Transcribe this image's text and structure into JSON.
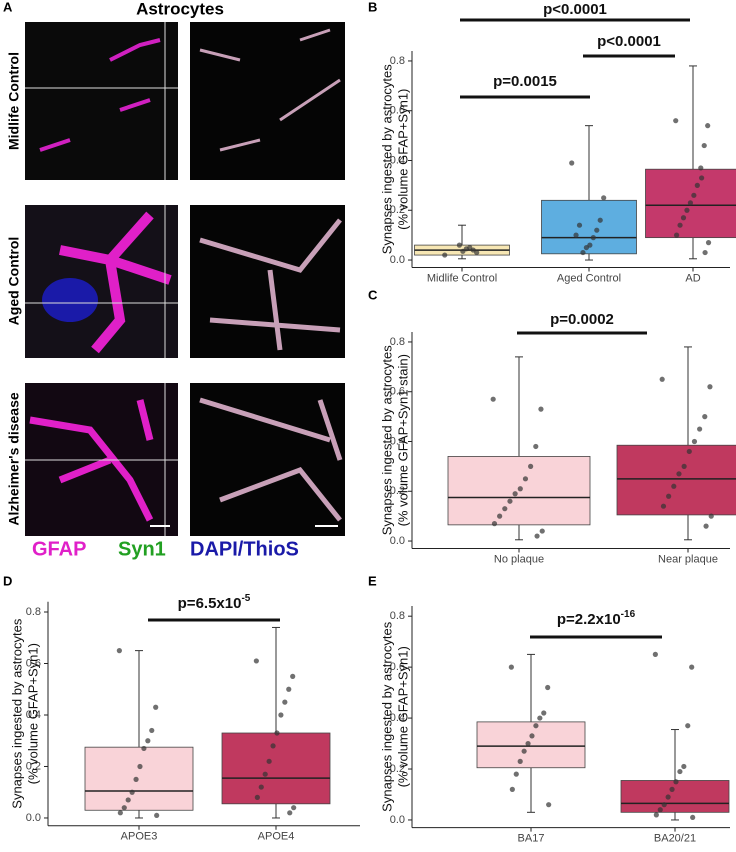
{
  "figure": {
    "panel_labels": [
      "A",
      "B",
      "C",
      "D",
      "E"
    ],
    "title": "Astrocytes",
    "rows": [
      "Midlife Control",
      "Aged Control",
      "Alzheimer's disease"
    ],
    "legend": [
      {
        "name": "GFAP",
        "color": "#e020c8"
      },
      {
        "name": "Syn1",
        "color": "#22a022"
      },
      {
        "name": "DAPI/ThioS",
        "color": "#1a1aa8"
      }
    ]
  },
  "chart_data": [
    {
      "type": "box",
      "ylabel": [
        "Synapses ingested by astrocytes",
        "(% volume GFAP+Syn1)"
      ],
      "categories": [
        "Midlife Control",
        "Aged Control",
        "AD"
      ],
      "colors": [
        "#f7e7b4",
        "#5eaee0",
        "#c4396b"
      ],
      "boxes": [
        {
          "min": 0.005,
          "q1": 0.02,
          "median": 0.04,
          "q3": 0.06,
          "max": 0.14
        },
        {
          "min": 0.0,
          "q1": 0.025,
          "median": 0.09,
          "q3": 0.24,
          "max": 0.54
        },
        {
          "min": 0.005,
          "q1": 0.09,
          "median": 0.22,
          "q3": 0.365,
          "max": 0.78
        }
      ],
      "points": [
        [
          0.02,
          0.03,
          0.04,
          0.05,
          0.045,
          0.035,
          0.06
        ],
        [
          0.39,
          0.25,
          0.16,
          0.12,
          0.09,
          0.06,
          0.05,
          0.03,
          0.14,
          0.1
        ],
        [
          0.56,
          0.54,
          0.46,
          0.37,
          0.3,
          0.26,
          0.23,
          0.2,
          0.17,
          0.14,
          0.1,
          0.07,
          0.03,
          0.33
        ]
      ],
      "annotations": [
        {
          "base": "p=0.0015"
        },
        {
          "base": "p<0.0001"
        },
        {
          "base": "p<0.0001"
        }
      ],
      "ylim": [
        -0.03,
        0.84
      ],
      "yticks": [
        {
          "value": 0,
          "label": "0.0"
        },
        0.2,
        0.4,
        0.6,
        0.8
      ]
    },
    {
      "type": "box",
      "ylabel": [
        "Synapses ingested by astrocytes",
        "(% volume GFAP+Syn1 stain)"
      ],
      "categories": [
        "No plaque",
        "Near plaque"
      ],
      "colors": [
        "#f9d3d8",
        "#c0395f"
      ],
      "boxes": [
        {
          "min": 0.005,
          "q1": 0.065,
          "median": 0.175,
          "q3": 0.34,
          "max": 0.74
        },
        {
          "min": 0.005,
          "q1": 0.105,
          "median": 0.25,
          "q3": 0.385,
          "max": 0.78
        }
      ],
      "points": [
        [
          0.57,
          0.53,
          0.38,
          0.3,
          0.25,
          0.21,
          0.19,
          0.16,
          0.13,
          0.1,
          0.07,
          0.04,
          0.02
        ],
        [
          0.65,
          0.62,
          0.5,
          0.45,
          0.4,
          0.36,
          0.3,
          0.27,
          0.22,
          0.18,
          0.14,
          0.1,
          0.06
        ]
      ],
      "annotations": [
        {
          "base": "p=0.0002"
        }
      ],
      "ylim": [
        -0.03,
        0.84
      ],
      "yticks": [
        {
          "value": 0,
          "label": "0.0"
        },
        0.2,
        0.4,
        0.6,
        0.8
      ]
    },
    {
      "type": "box",
      "ylabel": [
        "Synapses ingested by astrocytes",
        "(% volume GFAP+Syn1)"
      ],
      "categories": [
        "APOE3",
        "APOE4"
      ],
      "colors": [
        "#f9d3d8",
        "#c0395f"
      ],
      "boxes": [
        {
          "min": 0.0,
          "q1": 0.03,
          "median": 0.105,
          "q3": 0.275,
          "max": 0.65
        },
        {
          "min": 0.0,
          "q1": 0.055,
          "median": 0.155,
          "q3": 0.33,
          "max": 0.74
        }
      ],
      "points": [
        [
          0.65,
          0.43,
          0.34,
          0.3,
          0.27,
          0.2,
          0.15,
          0.1,
          0.07,
          0.04,
          0.02,
          0.01
        ],
        [
          0.61,
          0.55,
          0.5,
          0.45,
          0.4,
          0.33,
          0.28,
          0.22,
          0.17,
          0.12,
          0.08,
          0.04,
          0.02
        ]
      ],
      "annotations": [
        {
          "base": "p=6.5x10",
          "exponent": "-5"
        }
      ],
      "ylim": [
        -0.03,
        0.84
      ],
      "yticks": [
        {
          "value": 0,
          "label": "0.0"
        },
        0.2,
        0.4,
        0.6,
        0.8
      ]
    },
    {
      "type": "box",
      "ylabel": [
        "Synapses ingested by astrocytes",
        "(% volume GFAP+Syn1)"
      ],
      "categories": [
        "BA17",
        "BA20/21"
      ],
      "colors": [
        "#f9d3d8",
        "#c0395f"
      ],
      "boxes": [
        {
          "min": 0.03,
          "q1": 0.205,
          "median": 0.29,
          "q3": 0.385,
          "max": 0.65
        },
        {
          "min": 0.0,
          "q1": 0.03,
          "median": 0.065,
          "q3": 0.155,
          "max": 0.355
        }
      ],
      "points": [
        [
          0.6,
          0.52,
          0.42,
          0.4,
          0.37,
          0.33,
          0.3,
          0.27,
          0.23,
          0.18,
          0.12,
          0.06
        ],
        [
          0.65,
          0.6,
          0.37,
          0.21,
          0.19,
          0.15,
          0.12,
          0.09,
          0.06,
          0.04,
          0.02,
          0.01
        ]
      ],
      "annotations": [
        {
          "base": "p=2.2x10",
          "exponent": "-16"
        }
      ],
      "ylim": [
        -0.03,
        0.84
      ],
      "yticks": [
        {
          "value": 0,
          "label": "0.0"
        },
        0.2,
        0.4,
        0.6,
        0.8
      ]
    }
  ]
}
